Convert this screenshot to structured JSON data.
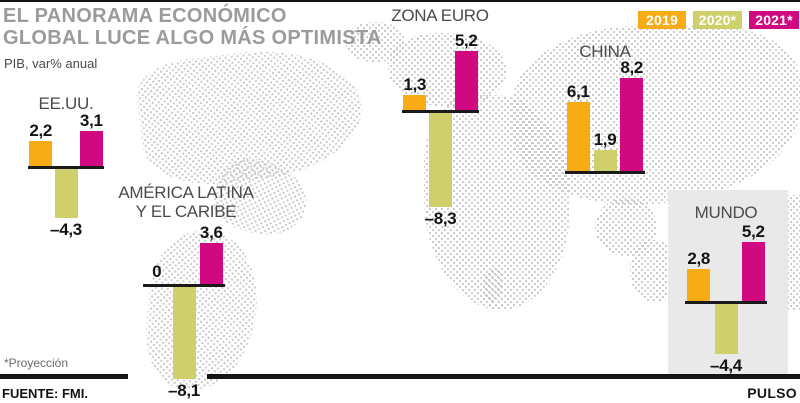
{
  "header": {
    "title_line1": "EL PANORAMA ECONÓMICO",
    "title_line2": "GLOBAL LUCE ALGO MÁS OPTIMISTA",
    "subtitle": "PIB, var% anual"
  },
  "footnote": "*Proyección",
  "source": "FUENTE: FMI.",
  "brand": "PULSO",
  "colors": {
    "series_2019": "#F7AB15",
    "series_2020": "#CFD06C",
    "series_2021": "#D10980",
    "title_gray": "#9B9B9B",
    "panel_gray": "#E9E9E9",
    "ink": "#141414",
    "map_dots": "#C9C9C9"
  },
  "chart_data": {
    "type": "bar",
    "title": "EL PANORAMA ECONÓMICO GLOBAL LUCE ALGO MÁS OPTIMISTA",
    "subtitle": "PIB, var% anual",
    "legend_position": "top-right",
    "grid": false,
    "ylim": [
      -8.3,
      8.2
    ],
    "series": [
      {
        "name": "2019",
        "color": "#F7AB15"
      },
      {
        "name": "2020*",
        "color": "#CFD06C"
      },
      {
        "name": "2021*",
        "color": "#D10980"
      }
    ],
    "groups": [
      {
        "name": "EE.UU.",
        "values": [
          2.2,
          -4.3,
          3.1
        ],
        "display": [
          "2,2",
          "–4,3",
          "3,1"
        ]
      },
      {
        "name": "AMÉRICA LATINA Y EL CARIBE",
        "name_lines": [
          "AMÉRICA LATINA",
          "Y EL CARIBE"
        ],
        "values": [
          0,
          -8.1,
          3.6
        ],
        "display": [
          "0",
          "–8,1",
          "3,6"
        ]
      },
      {
        "name": "ZONA EURO",
        "values": [
          1.3,
          -8.3,
          5.2
        ],
        "display": [
          "1,3",
          "–8,3",
          "5,2"
        ]
      },
      {
        "name": "CHINA",
        "values": [
          6.1,
          1.9,
          8.2
        ],
        "display": [
          "6,1",
          "1,9",
          "8,2"
        ]
      },
      {
        "name": "MUNDO",
        "values": [
          2.8,
          -4.4,
          5.2
        ],
        "display": [
          "2,8",
          "–4,4",
          "5,2"
        ]
      }
    ]
  }
}
